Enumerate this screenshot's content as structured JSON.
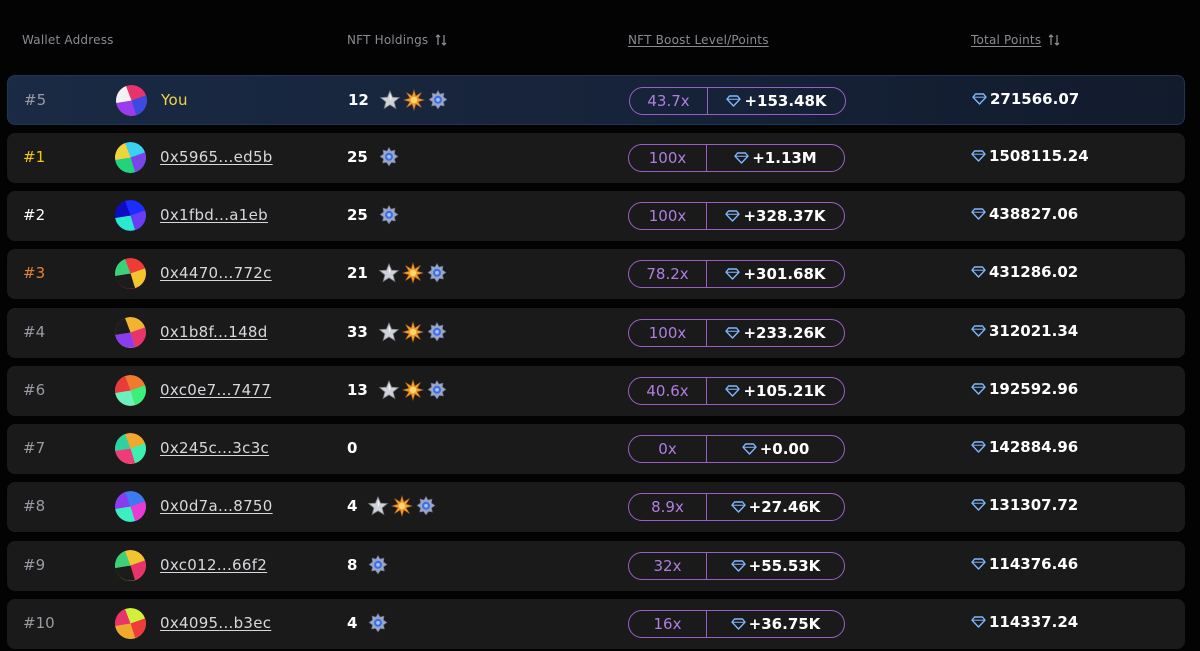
{
  "header": {
    "wallet_address": "Wallet Address",
    "nft_holdings": "NFT Holdings",
    "boost": "NFT Boost Level/Points",
    "total_points": "Total Points"
  },
  "colors": {
    "accent_purple": "#9b5ec9",
    "rank_gold": "#f5c518",
    "rank_bronze": "#e4813a",
    "you_label": "#f2d44a",
    "diamond": "#7fb8ff"
  },
  "icons": [
    "sort-icon",
    "silver-star-icon",
    "orange-burst-icon",
    "blue-crystal-badge-icon",
    "diamond-icon"
  ],
  "rows": [
    {
      "rank": "#5",
      "address": "You",
      "holdings": "12",
      "nfts": [
        "star",
        "burst",
        "badge"
      ],
      "multiplier": "43.7x",
      "boost_points": "+153.48K",
      "total": "271566.07",
      "highlight": true
    },
    {
      "rank": "#1",
      "address": "0x5965...ed5b",
      "holdings": "25",
      "nfts": [
        "badge"
      ],
      "multiplier": "100x",
      "boost_points": "+1.13M",
      "total": "1508115.24"
    },
    {
      "rank": "#2",
      "address": "0x1fbd...a1eb",
      "holdings": "25",
      "nfts": [
        "badge"
      ],
      "multiplier": "100x",
      "boost_points": "+328.37K",
      "total": "438827.06"
    },
    {
      "rank": "#3",
      "address": "0x4470...772c",
      "holdings": "21",
      "nfts": [
        "star",
        "burst",
        "badge"
      ],
      "multiplier": "78.2x",
      "boost_points": "+301.68K",
      "total": "431286.02"
    },
    {
      "rank": "#4",
      "address": "0x1b8f...148d",
      "holdings": "33",
      "nfts": [
        "star",
        "burst",
        "badge"
      ],
      "multiplier": "100x",
      "boost_points": "+233.26K",
      "total": "312021.34"
    },
    {
      "rank": "#6",
      "address": "0xc0e7...7477",
      "holdings": "13",
      "nfts": [
        "star",
        "burst",
        "badge"
      ],
      "multiplier": "40.6x",
      "boost_points": "+105.21K",
      "total": "192592.96"
    },
    {
      "rank": "#7",
      "address": "0x245c...3c3c",
      "holdings": "0",
      "nfts": [],
      "multiplier": "0x",
      "boost_points": "+0.00",
      "total": "142884.96"
    },
    {
      "rank": "#8",
      "address": "0x0d7a...8750",
      "holdings": "4",
      "nfts": [
        "star",
        "burst",
        "badge"
      ],
      "multiplier": "8.9x",
      "boost_points": "+27.46K",
      "total": "131307.72"
    },
    {
      "rank": "#9",
      "address": "0xc012...66f2",
      "holdings": "8",
      "nfts": [
        "badge"
      ],
      "multiplier": "32x",
      "boost_points": "+55.53K",
      "total": "114376.46"
    },
    {
      "rank": "#10",
      "address": "0x4095...b3ec",
      "holdings": "4",
      "nfts": [
        "badge"
      ],
      "multiplier": "16x",
      "boost_points": "+36.75K",
      "total": "114337.24"
    }
  ]
}
